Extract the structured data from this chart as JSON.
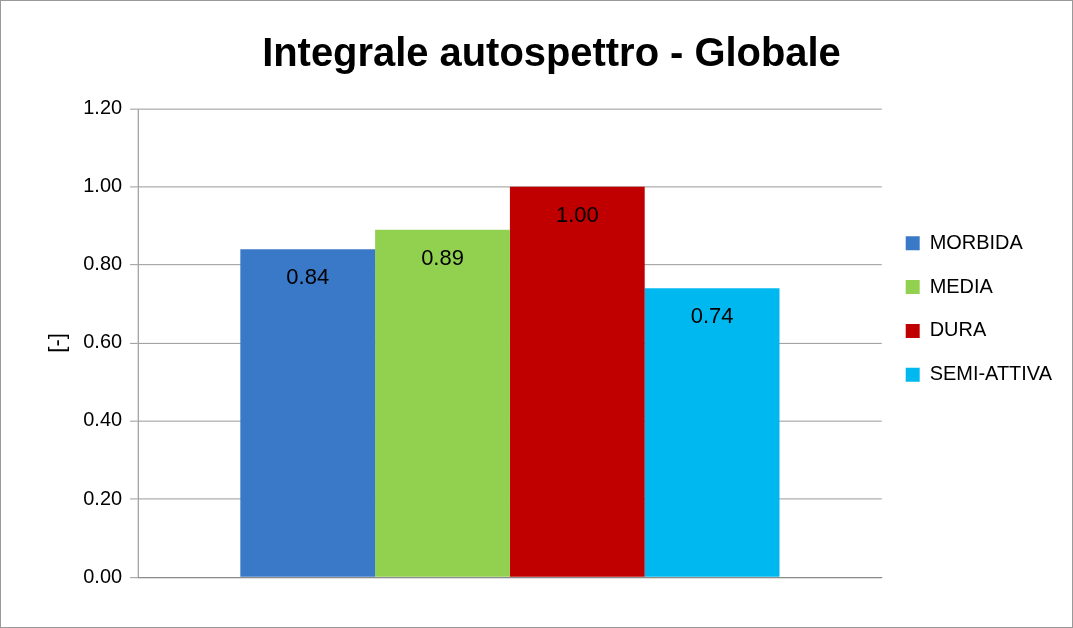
{
  "chart_data": {
    "type": "bar",
    "title": "Integrale autospettro - Globale",
    "ylabel": "[-]",
    "categories": [
      null
    ],
    "series": [
      {
        "name": "MORBIDA",
        "color": "#3a78c8",
        "values": [
          0.84
        ],
        "value_labels": [
          "0.84"
        ]
      },
      {
        "name": "MEDIA",
        "color": "#92d050",
        "values": [
          0.89
        ],
        "value_labels": [
          "0.89"
        ]
      },
      {
        "name": "DURA",
        "color": "#c00000",
        "values": [
          1.0
        ],
        "value_labels": [
          "1.00"
        ]
      },
      {
        "name": "SEMI-ATTIVA",
        "color": "#00b8f0",
        "values": [
          0.74
        ],
        "value_labels": [
          "0.74"
        ]
      }
    ],
    "ylim": [
      0,
      1.2
    ],
    "yticks": [
      {
        "value": 0,
        "label": "0.00"
      },
      {
        "value": 0.2,
        "label": "0.20"
      },
      {
        "value": 0.4,
        "label": "0.40"
      },
      {
        "value": 0.6,
        "label": "0.60"
      },
      {
        "value": 0.8,
        "label": "0.80"
      },
      {
        "value": 1.0,
        "label": "1.00"
      },
      {
        "value": 1.2,
        "label": "1.20"
      }
    ],
    "grid": "y",
    "legend": "right"
  }
}
